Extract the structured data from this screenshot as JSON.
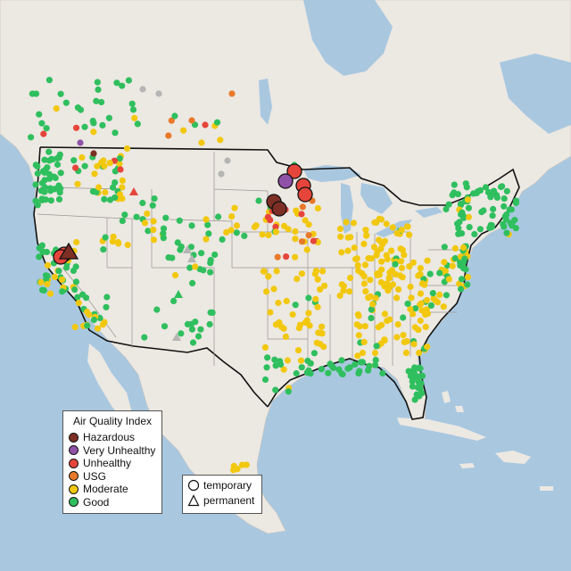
{
  "legend": {
    "title": "Air Quality Index",
    "categories": [
      {
        "label": "Hazardous",
        "color": "#7e2f25"
      },
      {
        "label": "Very Unhealthy",
        "color": "#8f52a8"
      },
      {
        "label": "Unhealthy",
        "color": "#e6453b"
      },
      {
        "label": "USG",
        "color": "#e8792a"
      },
      {
        "label": "Moderate",
        "color": "#f2c80f"
      },
      {
        "label": "Good",
        "color": "#2fbf5e"
      }
    ]
  },
  "monitor_types": {
    "temporary": "temporary",
    "permanent": "permanent"
  },
  "colors": {
    "ocean": "#a9c8e0",
    "land": "#ece8e2",
    "no_data": "#b5b5b5"
  }
}
